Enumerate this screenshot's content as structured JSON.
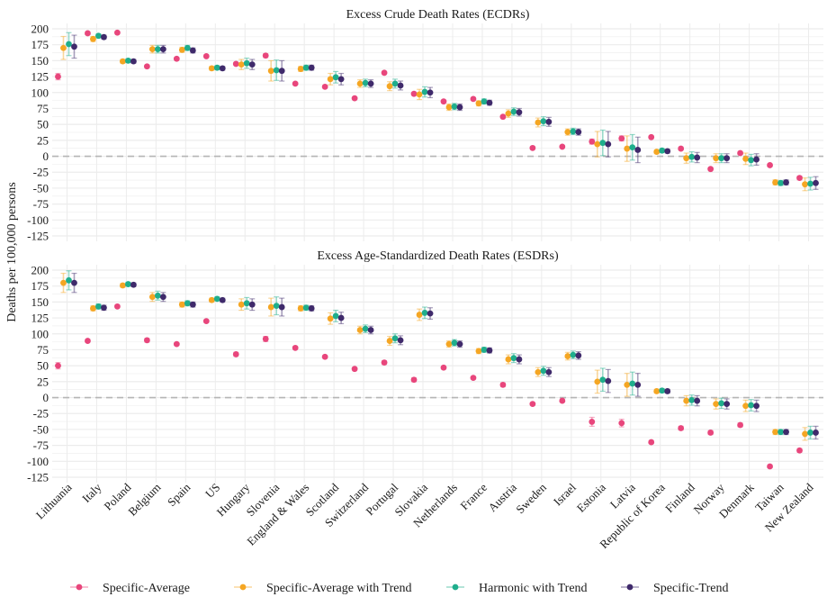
{
  "chart_data": {
    "type": "scatter",
    "ylabel": "Deaths per 100,000 persons",
    "categories": [
      "Lithuania",
      "Italy",
      "Poland",
      "Belgium",
      "Spain",
      "US",
      "Hungary",
      "Slovenia",
      "England & Wales",
      "Scotland",
      "Switzerland",
      "Portugal",
      "Slovakia",
      "Netherlands",
      "France",
      "Austria",
      "Sweden",
      "Israel",
      "Estonia",
      "Latvia",
      "Republic of Korea",
      "Finland",
      "Norway",
      "Denmark",
      "Taiwan",
      "New Zealand"
    ],
    "legend": {
      "placement": "bottom"
    },
    "series": [
      {
        "name": "Specific-Average",
        "color": "#e8467c"
      },
      {
        "name": "Specific-Average with Trend",
        "color": "#f5a623"
      },
      {
        "name": "Harmonic with Trend",
        "color": "#1fae8c"
      },
      {
        "name": "Specific-Trend",
        "color": "#3f2a6b"
      }
    ],
    "panels": [
      {
        "title": "Excess Crude Death Rates (ECDRs)",
        "ylim": [
          -125,
          200
        ],
        "yticks": [
          200,
          175,
          150,
          125,
          100,
          75,
          50,
          25,
          0,
          -25,
          -50,
          -75,
          -100,
          -125
        ],
        "grid": true,
        "values": [
          [
            125,
            170,
            176,
            172
          ],
          [
            193,
            184,
            189,
            187
          ],
          [
            194,
            149,
            150,
            149
          ],
          [
            141,
            168,
            168,
            168
          ],
          [
            153,
            167,
            170,
            166
          ],
          [
            157,
            138,
            139,
            138
          ],
          [
            145,
            144,
            146,
            144
          ],
          [
            158,
            134,
            135,
            134
          ],
          [
            114,
            137,
            139,
            139
          ],
          [
            109,
            121,
            124,
            121
          ],
          [
            91,
            114,
            115,
            114
          ],
          [
            131,
            110,
            114,
            111
          ],
          [
            98,
            97,
            101,
            100
          ],
          [
            86,
            77,
            78,
            77
          ],
          [
            90,
            83,
            86,
            84
          ],
          [
            62,
            67,
            70,
            69
          ],
          [
            13,
            53,
            55,
            54
          ],
          [
            15,
            38,
            39,
            38
          ],
          [
            23,
            19,
            21,
            19
          ],
          [
            28,
            12,
            14,
            10
          ],
          [
            30,
            7,
            9,
            8
          ],
          [
            12,
            -3,
            -1,
            -2
          ],
          [
            -20,
            -3,
            -3,
            -3
          ],
          [
            5,
            -4,
            -6,
            -5
          ],
          [
            -14,
            -41,
            -42,
            -41
          ],
          [
            -34,
            -44,
            -43,
            -42
          ]
        ],
        "errors": [
          [
            5,
            18,
            18,
            18
          ],
          [
            2,
            4,
            3,
            3
          ],
          [
            2,
            3,
            3,
            3
          ],
          [
            2,
            6,
            6,
            6
          ],
          [
            2,
            4,
            4,
            4
          ],
          [
            2,
            3,
            3,
            3
          ],
          [
            2,
            8,
            8,
            8
          ],
          [
            3,
            16,
            16,
            16
          ],
          [
            2,
            4,
            4,
            4
          ],
          [
            2,
            9,
            9,
            9
          ],
          [
            2,
            6,
            6,
            6
          ],
          [
            2,
            7,
            7,
            7
          ],
          [
            2,
            8,
            8,
            8
          ],
          [
            2,
            5,
            5,
            5
          ],
          [
            2,
            4,
            4,
            4
          ],
          [
            2,
            6,
            6,
            6
          ],
          [
            2,
            7,
            7,
            7
          ],
          [
            2,
            5,
            5,
            5
          ],
          [
            4,
            20,
            20,
            20
          ],
          [
            4,
            20,
            20,
            20
          ],
          [
            2,
            3,
            3,
            3
          ],
          [
            2,
            8,
            8,
            8
          ],
          [
            2,
            7,
            7,
            7
          ],
          [
            2,
            9,
            9,
            9
          ],
          [
            2,
            4,
            4,
            4
          ],
          [
            3,
            10,
            10,
            10
          ]
        ]
      },
      {
        "title": "Excess Age-Standardized Death Rates (ESDRs)",
        "ylim": [
          -125,
          200
        ],
        "yticks": [
          200,
          175,
          150,
          125,
          100,
          75,
          50,
          25,
          0,
          -25,
          -50,
          -75,
          -100,
          -125
        ],
        "grid": true,
        "values": [
          [
            50,
            180,
            184,
            180
          ],
          [
            89,
            140,
            143,
            141
          ],
          [
            143,
            176,
            178,
            177
          ],
          [
            90,
            158,
            160,
            158
          ],
          [
            84,
            146,
            148,
            146
          ],
          [
            120,
            153,
            155,
            153
          ],
          [
            68,
            146,
            148,
            146
          ],
          [
            92,
            142,
            144,
            142
          ],
          [
            78,
            140,
            141,
            140
          ],
          [
            64,
            124,
            128,
            125
          ],
          [
            45,
            106,
            108,
            106
          ],
          [
            55,
            89,
            93,
            90
          ],
          [
            28,
            130,
            133,
            132
          ],
          [
            47,
            84,
            86,
            84
          ],
          [
            31,
            73,
            75,
            74
          ],
          [
            20,
            60,
            62,
            60
          ],
          [
            -10,
            40,
            42,
            40
          ],
          [
            -5,
            65,
            67,
            66
          ],
          [
            -38,
            25,
            28,
            26
          ],
          [
            -40,
            20,
            22,
            20
          ],
          [
            -70,
            10,
            11,
            10
          ],
          [
            -48,
            -5,
            -4,
            -5
          ],
          [
            -55,
            -10,
            -9,
            -10
          ],
          [
            -43,
            -13,
            -12,
            -13
          ],
          [
            -108,
            -54,
            -54,
            -54
          ],
          [
            -83,
            -57,
            -55,
            -55
          ]
        ],
        "errors": [
          [
            5,
            15,
            15,
            15
          ],
          [
            2,
            4,
            4,
            4
          ],
          [
            2,
            3,
            3,
            3
          ],
          [
            3,
            7,
            7,
            7
          ],
          [
            2,
            4,
            4,
            4
          ],
          [
            2,
            3,
            3,
            3
          ],
          [
            3,
            9,
            9,
            9
          ],
          [
            4,
            14,
            14,
            14
          ],
          [
            2,
            4,
            4,
            4
          ],
          [
            2,
            9,
            9,
            9
          ],
          [
            2,
            6,
            6,
            6
          ],
          [
            3,
            7,
            7,
            7
          ],
          [
            3,
            9,
            9,
            9
          ],
          [
            2,
            5,
            5,
            5
          ],
          [
            2,
            4,
            4,
            4
          ],
          [
            3,
            7,
            7,
            7
          ],
          [
            2,
            7,
            7,
            7
          ],
          [
            2,
            6,
            6,
            6
          ],
          [
            7,
            18,
            18,
            18
          ],
          [
            6,
            18,
            18,
            18
          ],
          [
            2,
            3,
            3,
            3
          ],
          [
            3,
            8,
            8,
            8
          ],
          [
            3,
            8,
            8,
            8
          ],
          [
            3,
            9,
            9,
            9
          ],
          [
            2,
            4,
            4,
            4
          ],
          [
            3,
            10,
            10,
            10
          ]
        ]
      }
    ]
  }
}
